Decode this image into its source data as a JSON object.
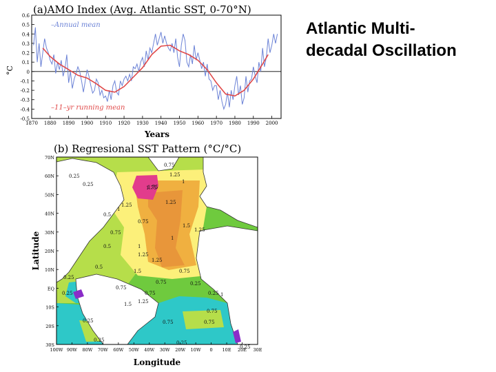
{
  "slide": {
    "title_line1": "Atlantic Multi-",
    "title_line2": "decadal Oscillation"
  },
  "chart_data": [
    {
      "type": "line",
      "title": "(a)AMO Index (Avg. Atlantic SST, 0-70°N)",
      "xlabel": "Years",
      "ylabel": "°C",
      "xlim": [
        1870,
        2005
      ],
      "ylim": [
        -0.5,
        0.6
      ],
      "x_ticks": [
        1870,
        1880,
        1890,
        1900,
        1910,
        1920,
        1930,
        1940,
        1950,
        1960,
        1970,
        1980,
        1990,
        2000
      ],
      "y_ticks": [
        -0.5,
        -0.4,
        -0.3,
        -0.2,
        -0.1,
        0,
        0.1,
        0.2,
        0.3,
        0.4,
        0.5,
        0.6
      ],
      "y_tick_labels": [
        "-0.5",
        "-0.4",
        "-0.3",
        "-0.2",
        "-0.1",
        "0",
        "0.1",
        "0.2",
        "0.3",
        "0.4",
        "0.5",
        "0.6"
      ],
      "grid": false,
      "series": [
        {
          "name": "Annual mean",
          "label_text": "–Annual mean",
          "color": "#6b82d6",
          "x": [
            1871,
            1872,
            1873,
            1874,
            1875,
            1876,
            1877,
            1878,
            1879,
            1880,
            1881,
            1882,
            1883,
            1884,
            1885,
            1886,
            1887,
            1888,
            1889,
            1890,
            1891,
            1892,
            1893,
            1894,
            1895,
            1896,
            1897,
            1898,
            1899,
            1900,
            1901,
            1902,
            1903,
            1904,
            1905,
            1906,
            1907,
            1908,
            1909,
            1910,
            1911,
            1912,
            1913,
            1914,
            1915,
            1916,
            1917,
            1918,
            1919,
            1920,
            1921,
            1922,
            1923,
            1924,
            1925,
            1926,
            1927,
            1928,
            1929,
            1930,
            1931,
            1932,
            1933,
            1934,
            1935,
            1936,
            1937,
            1938,
            1939,
            1940,
            1941,
            1942,
            1943,
            1944,
            1945,
            1946,
            1947,
            1948,
            1949,
            1950,
            1951,
            1952,
            1953,
            1954,
            1955,
            1956,
            1957,
            1958,
            1959,
            1960,
            1961,
            1962,
            1963,
            1964,
            1965,
            1966,
            1967,
            1968,
            1969,
            1970,
            1971,
            1972,
            1973,
            1974,
            1975,
            1976,
            1977,
            1978,
            1979,
            1980,
            1981,
            1982,
            1983,
            1984,
            1985,
            1986,
            1987,
            1988,
            1989,
            1990,
            1991,
            1992,
            1993,
            1994,
            1995,
            1996,
            1997,
            1998,
            1999,
            2000,
            2001,
            2002,
            2003
          ],
          "values": [
            0.28,
            0.47,
            0.1,
            0.3,
            0.05,
            0.2,
            0.35,
            0.25,
            0.2,
            0.12,
            0.08,
            0.18,
            -0.02,
            0.1,
            0.02,
            0.12,
            -0.05,
            0.03,
            0.18,
            -0.12,
            0.0,
            -0.18,
            -0.08,
            -0.02,
            0.05,
            0.0,
            -0.1,
            -0.22,
            -0.1,
            0.02,
            -0.05,
            -0.15,
            -0.23,
            -0.2,
            -0.08,
            -0.12,
            -0.25,
            -0.2,
            -0.28,
            -0.26,
            -0.32,
            -0.2,
            -0.3,
            -0.15,
            -0.1,
            -0.22,
            -0.25,
            -0.1,
            -0.15,
            -0.08,
            -0.05,
            -0.1,
            -0.03,
            -0.1,
            0.05,
            0.03,
            0.08,
            0.0,
            0.1,
            0.15,
            0.05,
            0.22,
            0.12,
            0.25,
            0.2,
            0.3,
            0.4,
            0.28,
            0.35,
            0.42,
            0.3,
            0.38,
            0.3,
            0.25,
            0.22,
            0.3,
            0.2,
            0.35,
            0.15,
            0.05,
            0.28,
            0.4,
            0.33,
            0.1,
            0.05,
            0.18,
            0.08,
            0.28,
            0.12,
            0.2,
            0.12,
            0.03,
            0.1,
            -0.05,
            0.08,
            -0.08,
            -0.1,
            -0.2,
            -0.15,
            -0.15,
            -0.3,
            -0.2,
            -0.32,
            -0.4,
            -0.35,
            -0.22,
            -0.38,
            -0.2,
            -0.3,
            -0.15,
            -0.05,
            -0.25,
            -0.15,
            -0.35,
            -0.28,
            -0.05,
            -0.22,
            -0.1,
            -0.08,
            0.05,
            -0.05,
            -0.12,
            0.1,
            0.0,
            0.25,
            0.05,
            0.15,
            0.35,
            0.2,
            0.28,
            0.4,
            0.3,
            0.4
          ]
        },
        {
          "name": "11-yr running mean",
          "label_text": "–11–yr running mean",
          "color": "#e04848",
          "x": [
            1876,
            1880,
            1885,
            1890,
            1895,
            1900,
            1905,
            1910,
            1915,
            1920,
            1925,
            1930,
            1935,
            1940,
            1945,
            1950,
            1955,
            1960,
            1965,
            1970,
            1975,
            1980,
            1985,
            1990,
            1995,
            1998
          ],
          "values": [
            0.25,
            0.16,
            0.08,
            0.02,
            -0.04,
            -0.07,
            -0.13,
            -0.2,
            -0.22,
            -0.16,
            -0.06,
            0.04,
            0.18,
            0.27,
            0.28,
            0.22,
            0.18,
            0.12,
            0.02,
            -0.12,
            -0.24,
            -0.26,
            -0.2,
            -0.08,
            0.08,
            0.18
          ]
        }
      ]
    },
    {
      "type": "heatmap",
      "title": "(b) Regresional SST Pattern (°C/°C)",
      "xlabel": "Longitude",
      "ylabel": "Latitude",
      "x_tick_labels": [
        "100W",
        "90W",
        "80W",
        "70W",
        "60W",
        "50W",
        "40W",
        "30W",
        "20W",
        "10W",
        "0",
        "10E",
        "20E",
        "30E"
      ],
      "y_tick_labels": [
        "70N",
        "60N",
        "50N",
        "40N",
        "30N",
        "20N",
        "10N",
        "EQ",
        "10S",
        "20S",
        "30S"
      ],
      "x_range_deg": [
        -100,
        30
      ],
      "y_range_deg": [
        -30,
        70
      ],
      "contour_labels": [
        "0.75",
        "1.25",
        "1.75",
        "1",
        "1.25",
        "0.25",
        "0.25",
        "0.5",
        "0.75",
        "1",
        "1.5",
        "1.25",
        "0.75",
        "1",
        "1.25",
        "1",
        "1.5",
        "0.25",
        "0.25",
        "0.75",
        "0.25",
        "0.25",
        "0.25",
        "0.25",
        "0.75",
        "1.5",
        "0.75",
        "0.75",
        "1",
        "1.75",
        "1.25",
        "0.75",
        "1.25",
        "0.75",
        "0.75",
        "0.5",
        "0.5",
        "1.25",
        "0.25",
        "0.25"
      ],
      "colors": {
        "land": "#ffffff",
        "negative": "#2ec8c8",
        "low": "#b6de4a",
        "mid": "#6fca3e",
        "high_green": "#42b232",
        "yellow": "#fcf07a",
        "orange_light": "#f0b040",
        "orange": "#e8963a",
        "magenta": "#e23c8c",
        "purple": "#8a2cc8"
      }
    }
  ]
}
